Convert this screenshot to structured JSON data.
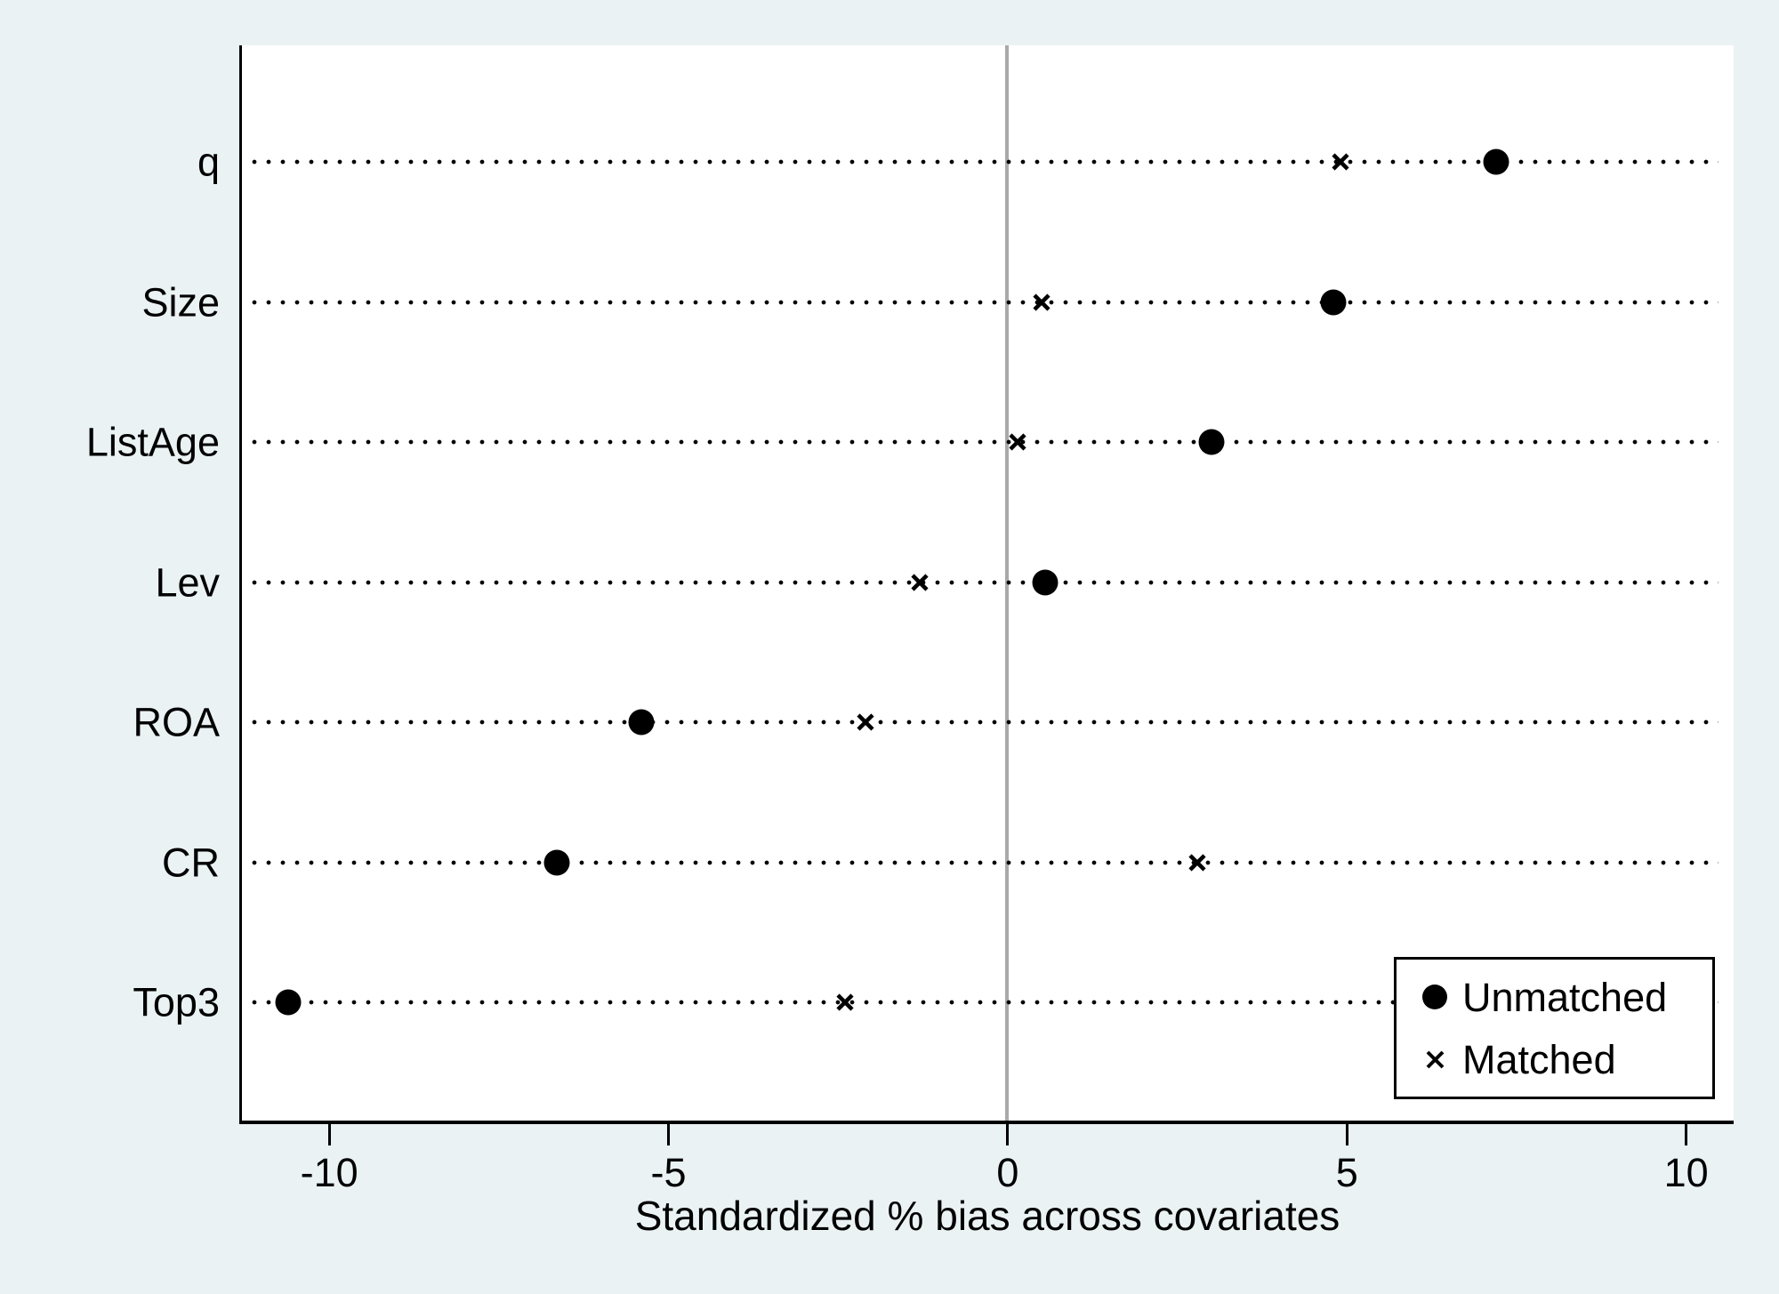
{
  "figure": {
    "background_color": "#eaf2f4",
    "plot_background_color": "#ffffff",
    "axis_color": "#000000",
    "zero_line_color": "#a9a9a9",
    "marker_color": "#000000",
    "dotted_line_color": "#000000"
  },
  "chart_data": {
    "type": "scatter",
    "subtype": "horizontal-dot-plot",
    "title": "",
    "xlabel": "Standardized % bias across covariates",
    "ylabel": "",
    "categories": [
      "q",
      "Size",
      "ListAge",
      "Lev",
      "ROA",
      "CR",
      "Top3"
    ],
    "series": [
      {
        "name": "Unmatched",
        "marker": "circle",
        "values": [
          7.2,
          4.8,
          3.0,
          0.55,
          -5.4,
          -6.65,
          -10.6
        ]
      },
      {
        "name": "Matched",
        "marker": "x",
        "values": [
          4.9,
          0.5,
          0.15,
          -1.3,
          -2.1,
          2.8,
          -2.4
        ]
      }
    ],
    "xticks": [
      -10,
      -5,
      0,
      5,
      10
    ],
    "xtick_labels": [
      "-10",
      "-5",
      "0",
      "5",
      "10"
    ],
    "xlim": [
      -11.3,
      10.7
    ],
    "reference_line_x": 0,
    "grid": "dotted horizontal leader line per category",
    "legend_position": "inside bottom-right"
  }
}
